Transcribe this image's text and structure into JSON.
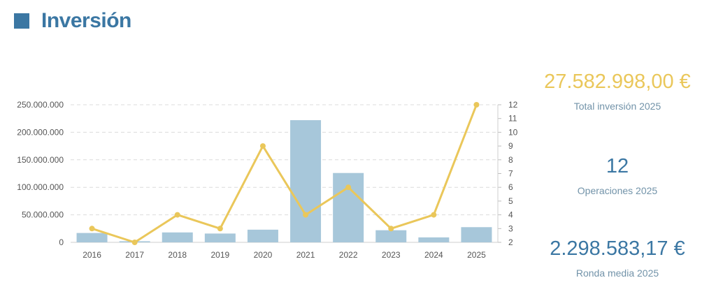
{
  "header": {
    "title": "Inversión"
  },
  "colors": {
    "accent": "#3b77a3",
    "bar": "#a7c7da",
    "line": "#eac75a",
    "kpi_gold": "#eac75a",
    "kpi_blue": "#3b77a3",
    "kpi_label": "#7293a9"
  },
  "kpis": {
    "total": {
      "value": "27.582.998,00 €",
      "label": "Total inversión 2025"
    },
    "operations": {
      "value": "12",
      "label": "Operaciones 2025"
    },
    "average": {
      "value": "2.298.583,17 €",
      "label": "Ronda media 2025"
    }
  },
  "chart_data": {
    "type": "bar",
    "categories": [
      "2016",
      "2017",
      "2018",
      "2019",
      "2020",
      "2021",
      "2022",
      "2023",
      "2024",
      "2025"
    ],
    "series": [
      {
        "type": "bar",
        "axis": "left",
        "values": [
          17000000,
          2000000,
          18000000,
          16000000,
          23000000,
          222000000,
          126000000,
          22000000,
          9000000,
          27582998
        ]
      },
      {
        "type": "line",
        "axis": "right",
        "values": [
          3,
          2,
          4,
          3,
          9,
          4,
          6,
          3,
          4,
          12
        ]
      }
    ],
    "left_axis": {
      "ylim": [
        0,
        250000000
      ],
      "ticks": [
        0,
        50000000,
        100000000,
        150000000,
        200000000,
        250000000
      ],
      "tick_labels": [
        "0",
        "50.000.000",
        "100.000.000",
        "150.000.000",
        "200.000.000",
        "250.000.000"
      ]
    },
    "right_axis": {
      "ylim": [
        2,
        12
      ],
      "ticks": [
        2,
        3,
        4,
        5,
        6,
        7,
        8,
        9,
        10,
        11,
        12
      ],
      "tick_labels": [
        "2",
        "3",
        "4",
        "5",
        "6",
        "7",
        "8",
        "9",
        "10",
        "11",
        "12"
      ]
    },
    "grid": true,
    "legend": "none"
  }
}
